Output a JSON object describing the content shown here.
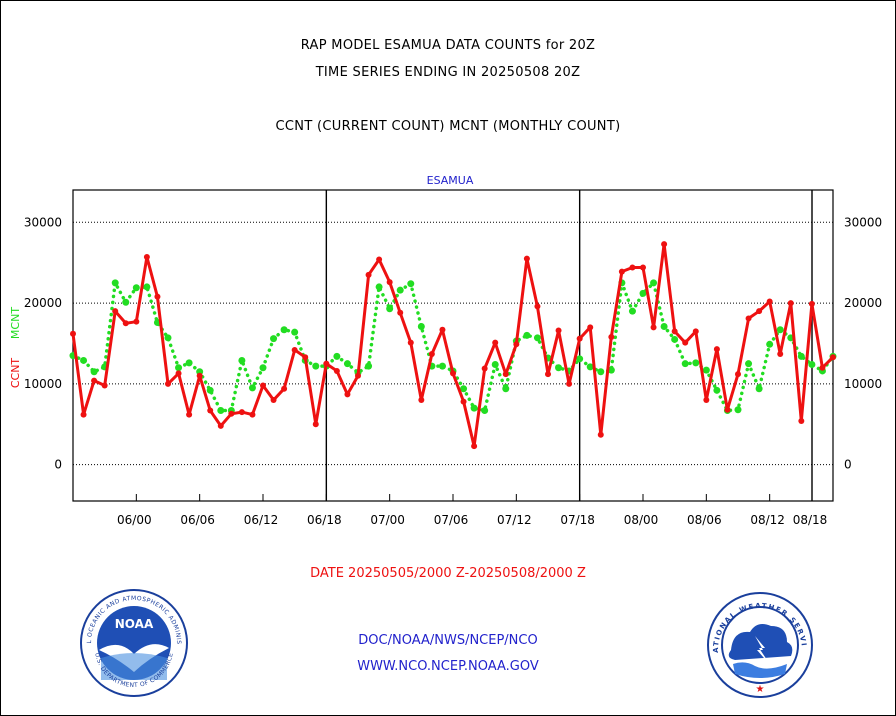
{
  "header": {
    "line1": "RAP MODEL ESAMUA DATA COUNTS for 20Z",
    "line2": "TIME SERIES ENDING IN 20250508 20Z",
    "line3": "CCNT (CURRENT COUNT) MCNT (MONTHLY COUNT)"
  },
  "footer": {
    "date_range": "DATE 20250505/2000 Z-20250508/2000 Z",
    "org_path": "DOC/NOAA/NWS/NCEP/NCO",
    "website": "WWW.NCO.NCEP.NOAA.GOV"
  },
  "logos": {
    "noaa_label": "NOAA",
    "noaa_ring_text": "NATIONAL OCEANIC AND ATMOSPHERIC ADMINISTRATION",
    "noaa_ring_bottom": "U.S. DEPARTMENT OF COMMERCE",
    "nws_ring_text": "NATIONAL WEATHER SERVICE"
  },
  "chart_data": {
    "type": "line",
    "title": "ESAMUA",
    "ylabel_left_1": "CCNT",
    "ylabel_left_2": "MCNT",
    "ylim": [
      -4500,
      34000
    ],
    "y_ticks": [
      0,
      10000,
      20000,
      30000
    ],
    "y_tick_labels": [
      "0",
      "10000",
      "20000",
      "30000"
    ],
    "x_tick_labels": [
      "06/00",
      "06/06",
      "06/12",
      "06/18",
      "07/00",
      "07/06",
      "07/12",
      "07/18",
      "08/00",
      "08/06",
      "08/12",
      "08/18"
    ],
    "x_tick_index": [
      6,
      12,
      18,
      24,
      30,
      36,
      42,
      48,
      54,
      60,
      66,
      72
    ],
    "day_boundaries_index": [
      24,
      48,
      72
    ],
    "x_range_index": [
      0,
      72
    ],
    "grid": "horizontal dotted",
    "colors": {
      "ccnt": "#ee1111",
      "mcnt": "#22dd22",
      "title": "#2222cc",
      "date": "#ee1111",
      "links": "#2222cc"
    },
    "series": [
      {
        "name": "CCNT",
        "values": [
          16200,
          6200,
          10400,
          9800,
          19000,
          17500,
          17700,
          25700,
          20800,
          10000,
          11300,
          6200,
          11000,
          6700,
          4800,
          6300,
          6500,
          6200,
          9800,
          8000,
          9400,
          14200,
          13300,
          5000,
          12500,
          11600,
          8700,
          11000,
          23500,
          25400,
          22600,
          18800,
          15100,
          8000,
          13700,
          16700,
          11300,
          7800,
          2300,
          11900,
          15100,
          11200,
          14900,
          25500,
          19600,
          11200,
          16600,
          10000,
          15600,
          17000,
          3700,
          15800,
          23900,
          24400,
          24400,
          17000,
          27300,
          16500,
          15100,
          16500,
          8000,
          14300,
          6800,
          11200,
          18100,
          19000,
          20200,
          13700,
          20000,
          5400,
          19900,
          12000,
          13300
        ]
      },
      {
        "name": "MCNT",
        "values": [
          13500,
          12900,
          11500,
          12100,
          22500,
          20100,
          21900,
          22000,
          17600,
          15700,
          12000,
          12600,
          11500,
          9200,
          6700,
          6700,
          12900,
          9500,
          12000,
          15600,
          16700,
          16400,
          12900,
          12200,
          12200,
          13400,
          12500,
          11400,
          12200,
          22000,
          19300,
          21600,
          22400,
          17100,
          12200,
          12200,
          11600,
          9400,
          7000,
          6700,
          12400,
          9400,
          15300,
          16000,
          15700,
          13200,
          12000,
          11600,
          13100,
          12100,
          11500,
          11700,
          22500,
          19000,
          21200,
          22500,
          17100,
          15500,
          12500,
          12600,
          11700,
          9200,
          6700,
          6800,
          12500,
          9400,
          14900,
          16700,
          15700,
          13400,
          12400,
          11600,
          13400
        ]
      }
    ]
  }
}
